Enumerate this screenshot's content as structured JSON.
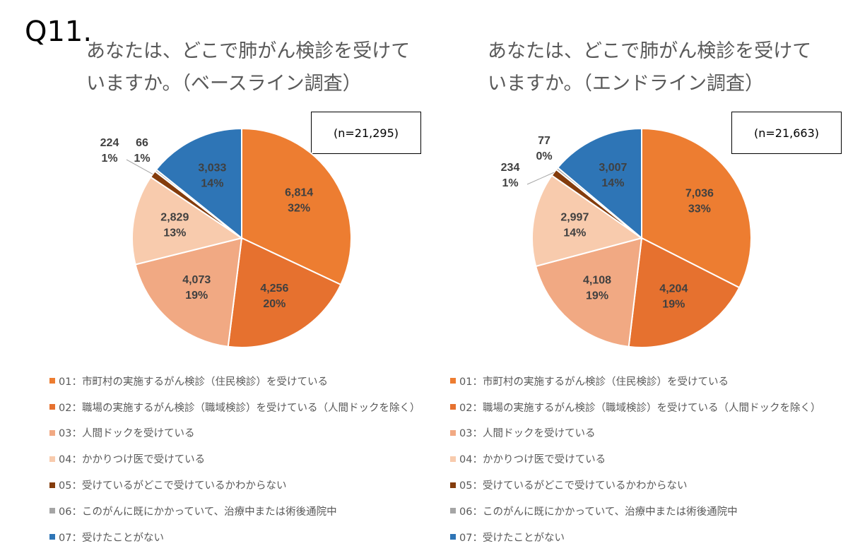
{
  "question_label": "Q11.",
  "chart_data": [
    {
      "type": "pie",
      "title": "あなたは、どこで肺がん検診を受けていますか。（ベースライン調査）",
      "n_label": "(n=21,295)",
      "categories": [
        "01：市町村の実施するがん検診（住民検診）を受けている",
        "02：職場の実施するがん検診（職域検診）を受けている（人間ドックを除く）",
        "03：人間ドックを受けている",
        "04：かかりつけ医で受けている",
        "05：受けているがどこで受けているかわからない",
        "06：このがんに既にかかっていて、治療中または術後通院中",
        "07：受けたことがない"
      ],
      "values": [
        6814,
        4256,
        4073,
        2829,
        224,
        66,
        3033
      ],
      "value_labels": [
        "6,814",
        "4,256",
        "4,073",
        "2,829",
        "224",
        "66",
        "3,033"
      ],
      "percent_labels": [
        "32%",
        "20%",
        "19%",
        "13%",
        "1%",
        "1%",
        "14%"
      ],
      "legend_placement": "bottom"
    },
    {
      "type": "pie",
      "title": "あなたは、どこで肺がん検診を受けていますか。（エンドライン調査）",
      "n_label": "(n=21,663)",
      "categories": [
        "01：市町村の実施するがん検診（住民検診）を受けている",
        "02：職場の実施するがん検診（職域検診）を受けている（人間ドックを除く）",
        "03：人間ドックを受けている",
        "04：かかりつけ医で受けている",
        "05：受けているがどこで受けているかわからない",
        "06：このがんに既にかかっていて、治療中または術後通院中",
        "07：受けたことがない"
      ],
      "values": [
        7036,
        4204,
        4108,
        2997,
        234,
        77,
        3007
      ],
      "value_labels": [
        "7,036",
        "4,204",
        "4,108",
        "2,997",
        "234",
        "77",
        "3,007"
      ],
      "percent_labels": [
        "33%",
        "19%",
        "19%",
        "14%",
        "1%",
        "0%",
        "14%"
      ],
      "legend_placement": "bottom"
    }
  ],
  "colors": [
    "#ED7D31",
    "#E6712F",
    "#F1A983",
    "#F8CBAD",
    "#843C0C",
    "#A5A5A5",
    "#2E75B6"
  ]
}
